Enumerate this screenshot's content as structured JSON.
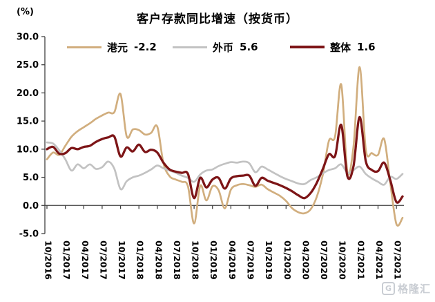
{
  "header": {
    "title": "客户存款同比增速（按货币）",
    "unit_label": "(%)"
  },
  "legend": {
    "items": [
      {
        "label": "港元",
        "value": "-2.2",
        "color": "#d1ae7e"
      },
      {
        "label": "外币",
        "value": "5.6",
        "color": "#c2c2c2"
      },
      {
        "label": "整体",
        "value": "1.6",
        "color": "#7d1517"
      }
    ]
  },
  "watermark": {
    "logo_letter": "G",
    "text": "格隆汇"
  },
  "chart_data": {
    "type": "line",
    "title": "客户存款同比增速（按货币）",
    "ylabel": "(%)",
    "ylim": [
      -5,
      30
    ],
    "ytick_labels": [
      "30.0",
      "25.0",
      "20.0",
      "15.0",
      "10.0",
      "5.0",
      "0.0",
      "-5.0"
    ],
    "grid": false,
    "legend_position": "top",
    "x_frequency": "monthly",
    "x_range": "10/2016 - 08/2021",
    "x_tick_every_months": 3,
    "x_tick_labels": [
      "10/2016",
      "01/2017",
      "04/2017",
      "07/2017",
      "10/2017",
      "01/2018",
      "04/2018",
      "07/2018",
      "10/2018",
      "01/2019",
      "04/2019",
      "07/2019",
      "10/2019",
      "01/2020",
      "04/2020",
      "07/2020",
      "10/2020",
      "01/2021",
      "04/2021",
      "07/2021"
    ],
    "series": [
      {
        "id": "hkd",
        "name": "港元",
        "latest": -2.2,
        "color": "#d1ae7e",
        "width": 2.7,
        "values": [
          8.2,
          9.4,
          9.0,
          10.6,
          12.2,
          13.2,
          13.9,
          14.6,
          15.4,
          16.0,
          16.5,
          16.6,
          19.8,
          12.3,
          13.5,
          13.4,
          12.6,
          12.9,
          14.0,
          7.5,
          5.2,
          4.6,
          4.2,
          3.4,
          -3.2,
          3.5,
          0.9,
          3.4,
          2.7,
          -0.5,
          2.8,
          3.6,
          3.8,
          3.6,
          3.3,
          3.7,
          2.9,
          2.3,
          1.7,
          0.8,
          -0.5,
          -1.2,
          -1.4,
          -0.7,
          1.5,
          5.5,
          11.5,
          12.3,
          21.5,
          6.0,
          10.5,
          24.6,
          10.0,
          9.3,
          9.0,
          11.8,
          4.0,
          -3.3,
          -2.2
        ]
      },
      {
        "id": "foreign",
        "name": "外币",
        "latest": 5.6,
        "color": "#c2c2c2",
        "width": 2.7,
        "values": [
          11.2,
          11.0,
          9.8,
          8.2,
          6.2,
          7.3,
          6.6,
          7.3,
          6.5,
          6.8,
          7.8,
          6.5,
          2.9,
          4.3,
          5.0,
          5.3,
          5.8,
          6.4,
          7.1,
          6.6,
          6.2,
          5.8,
          5.3,
          4.9,
          4.2,
          5.5,
          6.2,
          6.4,
          7.0,
          7.4,
          7.7,
          7.6,
          7.8,
          7.5,
          5.9,
          6.9,
          6.4,
          5.8,
          5.2,
          4.7,
          4.3,
          3.9,
          3.8,
          4.5,
          5.0,
          5.7,
          6.3,
          6.6,
          7.3,
          5.8,
          6.3,
          6.9,
          5.6,
          4.8,
          4.2,
          3.7,
          5.1,
          4.7,
          5.6
        ]
      },
      {
        "id": "overall",
        "name": "整体",
        "latest": 1.6,
        "color": "#7d1517",
        "width": 3.3,
        "values": [
          10.0,
          10.4,
          9.2,
          9.3,
          10.2,
          10.0,
          10.4,
          10.6,
          11.3,
          11.8,
          12.1,
          12.2,
          8.7,
          10.3,
          9.6,
          10.8,
          9.5,
          9.9,
          9.4,
          7.6,
          6.4,
          6.0,
          5.8,
          5.6,
          1.3,
          4.9,
          3.2,
          4.6,
          4.9,
          3.0,
          4.8,
          5.2,
          5.3,
          5.3,
          3.5,
          4.9,
          4.4,
          4.0,
          3.6,
          3.1,
          2.5,
          1.8,
          1.3,
          2.2,
          4.0,
          6.5,
          9.1,
          8.8,
          14.3,
          5.2,
          7.0,
          15.7,
          7.9,
          6.3,
          6.1,
          7.6,
          4.5,
          0.6,
          1.6
        ]
      }
    ]
  }
}
